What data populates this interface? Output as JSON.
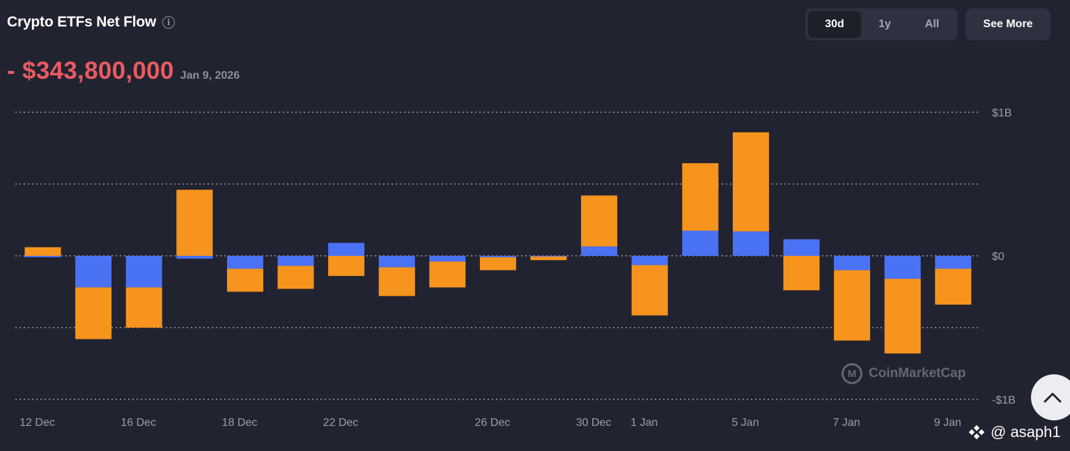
{
  "header": {
    "title": "Crypto ETFs Net Flow",
    "info_icon": "info-icon",
    "net_value": "- $343,800,000",
    "date": "Jan 9, 2026"
  },
  "range_tabs": [
    {
      "label": "30d",
      "active": true
    },
    {
      "label": "1y",
      "active": false
    },
    {
      "label": "All",
      "active": false
    }
  ],
  "see_more_label": "See More",
  "watermark": "CoinMarketCap",
  "credit": {
    "icon": "binance-square-icon",
    "text": "@ asaph1"
  },
  "scroll_top_icon": "chevron-up-icon",
  "colors": {
    "background": "#222330",
    "btc_series": "#4a72f5",
    "eth_series": "#f7941d",
    "negative_value": "#ea5b62"
  },
  "chart_data": {
    "type": "bar",
    "stacked": true,
    "y_unit": "USD (billions)",
    "ylim": [
      -1,
      1
    ],
    "y_ticks": [
      {
        "value": 1,
        "label": "$1B"
      },
      {
        "value": 0.5,
        "label": ""
      },
      {
        "value": 0,
        "label": "$0"
      },
      {
        "value": -0.5,
        "label": ""
      },
      {
        "value": -1,
        "label": "-$1B"
      }
    ],
    "grid": "horizontal-dotted",
    "x_tick_labels": [
      {
        "index": 0,
        "label": "12 Dec"
      },
      {
        "index": 2,
        "label": "16 Dec"
      },
      {
        "index": 4,
        "label": "18 Dec"
      },
      {
        "index": 6,
        "label": "22 Dec"
      },
      {
        "index": 9,
        "label": "26 Dec"
      },
      {
        "index": 11,
        "label": "30 Dec"
      },
      {
        "index": 12,
        "label": "1 Jan"
      },
      {
        "index": 14,
        "label": "5 Jan"
      },
      {
        "index": 16,
        "label": "7 Jan"
      },
      {
        "index": 18,
        "label": "9 Jan"
      }
    ],
    "category_count": 19,
    "series": [
      {
        "color": "#4a72f5",
        "values": [
          -0.01,
          -0.22,
          -0.22,
          -0.02,
          -0.09,
          -0.07,
          0.09,
          -0.08,
          -0.04,
          -0.01,
          -0.005,
          0.065,
          -0.065,
          0.175,
          0.17,
          0.115,
          -0.1,
          -0.16,
          -0.09
        ]
      },
      {
        "color": "#f7941d",
        "values": [
          0.06,
          -0.36,
          -0.28,
          0.46,
          -0.16,
          -0.16,
          -0.14,
          -0.2,
          -0.18,
          -0.09,
          -0.025,
          0.355,
          -0.35,
          0.47,
          0.69,
          -0.24,
          -0.49,
          -0.52,
          -0.25
        ]
      }
    ]
  }
}
